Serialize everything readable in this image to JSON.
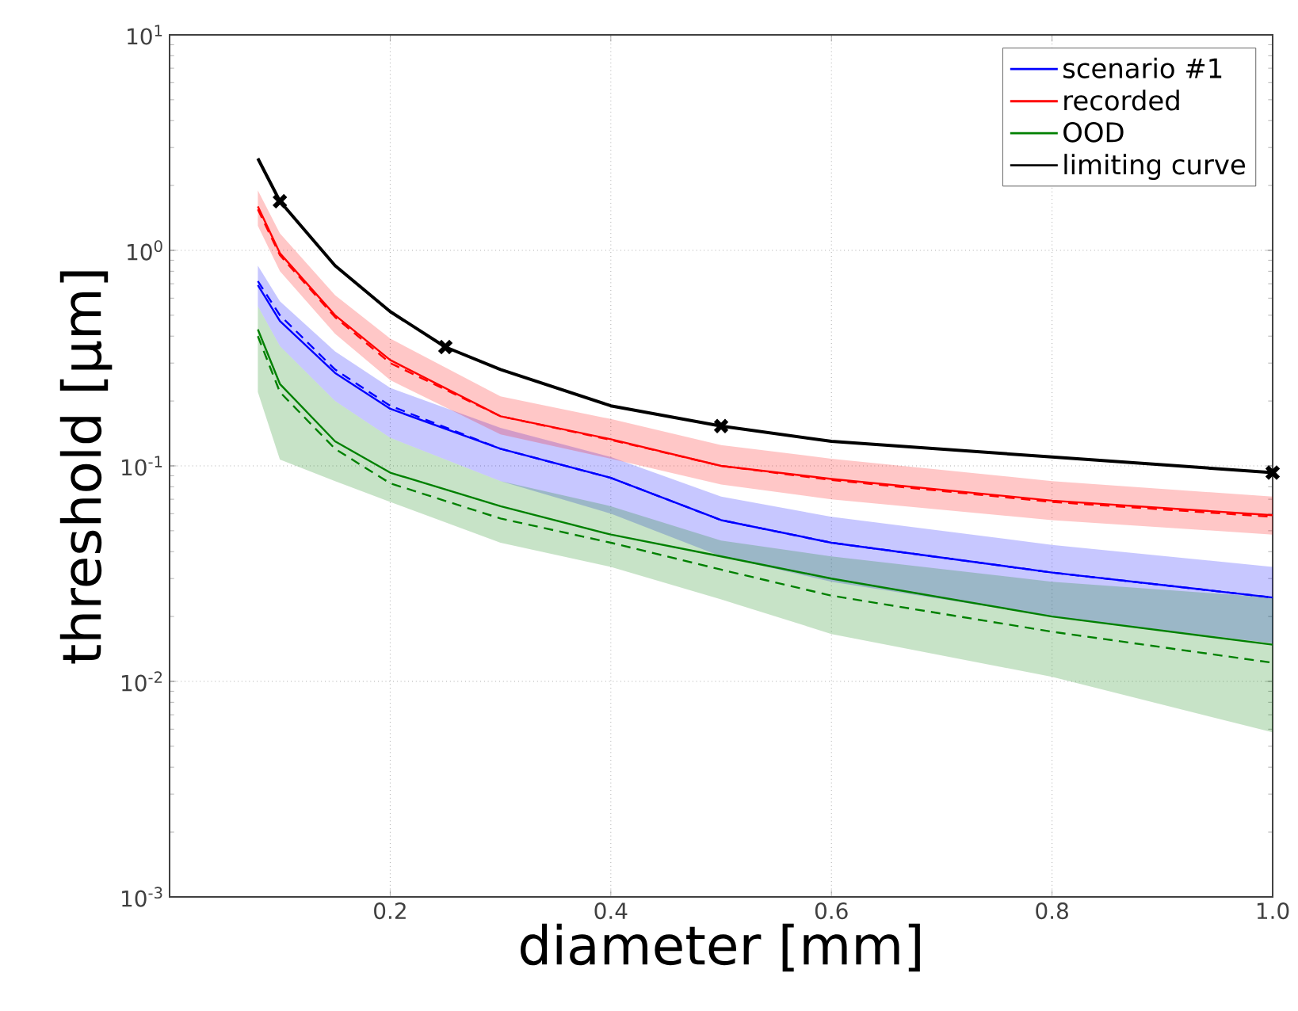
{
  "chart_data": {
    "type": "line",
    "xlabel": "diameter [mm]",
    "ylabel": "threshold [µm]",
    "log": "y",
    "grid": true,
    "legend": "top right",
    "xlim": [
      0,
      1.0
    ],
    "ylim": [
      0.001,
      10
    ],
    "xticks": [
      0.2,
      0.4,
      0.6,
      0.8,
      {
        "value": 1.0,
        "label": "1.0"
      }
    ],
    "yticks": [
      {
        "value": 0.001,
        "label": "10$^{-3}$"
      },
      {
        "value": 0.01,
        "label": "10$^{-2}$"
      },
      {
        "value": 0.1,
        "label": "10$^{-1}$"
      },
      {
        "value": 1,
        "label": "10$^{0}$"
      },
      {
        "value": 10,
        "label": "10$^{1}$"
      }
    ],
    "series": [
      {
        "name": "scenario #1",
        "color": "#0000ff",
        "x": [
          0.08,
          0.1,
          0.15,
          0.2,
          0.3,
          0.4,
          0.5,
          0.6,
          0.8,
          1.0
        ],
        "values": [
          0.69,
          0.47,
          0.27,
          0.184,
          0.12,
          0.088,
          0.056,
          0.044,
          0.032,
          0.0245
        ],
        "upper": [
          0.85,
          0.58,
          0.34,
          0.23,
          0.15,
          0.11,
          0.072,
          0.058,
          0.043,
          0.034
        ],
        "lower": [
          0.55,
          0.36,
          0.2,
          0.135,
          0.085,
          0.06,
          0.038,
          0.029,
          0.02,
          0.015
        ]
      },
      {
        "name": "recorded",
        "color": "#ff0000",
        "x": [
          0.08,
          0.1,
          0.15,
          0.2,
          0.3,
          0.4,
          0.5,
          0.6,
          0.8,
          1.0
        ],
        "values": [
          1.6,
          0.97,
          0.5,
          0.31,
          0.17,
          0.133,
          0.1,
          0.087,
          0.069,
          0.059
        ],
        "upper": [
          1.9,
          1.2,
          0.62,
          0.39,
          0.21,
          0.165,
          0.125,
          0.108,
          0.085,
          0.072
        ],
        "lower": [
          1.3,
          0.8,
          0.41,
          0.25,
          0.14,
          0.108,
          0.082,
          0.07,
          0.056,
          0.048
        ]
      },
      {
        "name": "OOD",
        "color": "#008000",
        "x": [
          0.08,
          0.1,
          0.15,
          0.2,
          0.3,
          0.4,
          0.5,
          0.6,
          0.8,
          1.0
        ],
        "values": [
          0.43,
          0.24,
          0.13,
          0.093,
          0.065,
          0.048,
          0.038,
          0.03,
          0.02,
          0.0148
        ],
        "upper": [
          0.55,
          0.36,
          0.2,
          0.135,
          0.085,
          0.065,
          0.045,
          0.038,
          0.029,
          0.0245
        ],
        "lower": [
          0.22,
          0.107,
          0.085,
          0.068,
          0.044,
          0.034,
          0.024,
          0.0166,
          0.0105,
          0.0058
        ]
      },
      {
        "name": "limiting curve",
        "color": "#000000",
        "x": [
          0.08,
          0.1,
          0.15,
          0.2,
          0.25,
          0.3,
          0.4,
          0.5,
          0.6,
          0.8,
          1.0
        ],
        "values": [
          2.67,
          1.69,
          0.85,
          0.52,
          0.356,
          0.28,
          0.19,
          0.153,
          0.13,
          0.11,
          0.093
        ]
      },
      {
        "color": "#0000ff",
        "line_style": "dashed",
        "x": [
          0.08,
          0.1,
          0.15,
          0.2,
          0.3,
          0.4,
          0.5,
          0.6,
          0.8,
          1.0
        ],
        "values": [
          0.72,
          0.5,
          0.28,
          0.19,
          0.12,
          0.088,
          0.056,
          0.044,
          0.032,
          0.0245
        ]
      },
      {
        "color": "#ff0000",
        "line_style": "dashed",
        "x": [
          0.08,
          0.1,
          0.15,
          0.2,
          0.3,
          0.4,
          0.5,
          0.6,
          0.8,
          1.0
        ],
        "values": [
          1.55,
          0.95,
          0.49,
          0.3,
          0.17,
          0.132,
          0.1,
          0.086,
          0.068,
          0.058
        ]
      },
      {
        "color": "#008000",
        "line_style": "dashed",
        "x": [
          0.08,
          0.1,
          0.15,
          0.2,
          0.3,
          0.4,
          0.5,
          0.6,
          0.8,
          1.0
        ],
        "values": [
          0.4,
          0.22,
          0.12,
          0.083,
          0.057,
          0.044,
          0.033,
          0.025,
          0.017,
          0.0122
        ]
      },
      {
        "type": "scatter",
        "marker": "cross",
        "color": "#000000",
        "x": [
          0.1,
          0.25,
          0.5,
          1.0
        ],
        "values": [
          1.69,
          0.356,
          0.153,
          0.093
        ]
      }
    ]
  }
}
